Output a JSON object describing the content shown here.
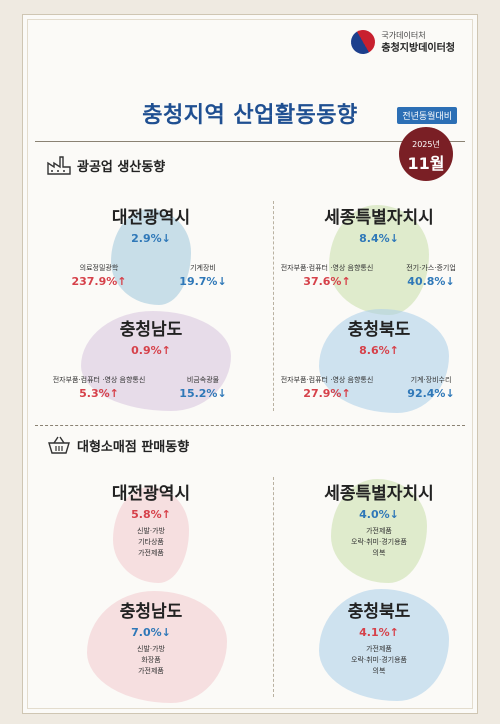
{
  "agency": {
    "sub": "국가데이터처",
    "name": "충청지방데이터청"
  },
  "title": "충청지역 산업활동동향",
  "yoy_tag": "전년동월대비",
  "date": {
    "year": "2025년",
    "month": "11월"
  },
  "section1": {
    "title": "광공업 생산동향",
    "regions": [
      {
        "name": "대전광역시",
        "total": "2.9%↓",
        "items": [
          {
            "label": "의료정밀광학",
            "value": "237.9%↑"
          },
          {
            "label": "기계장비",
            "value": "19.7%↓"
          }
        ]
      },
      {
        "name": "세종특별자치시",
        "total": "8.4%↓",
        "items": [
          {
            "label": "전자부품·컴퓨터 ·영상 음향통신",
            "value": "37.6%↑"
          },
          {
            "label": "전기·가스·증기업",
            "value": "40.8%↓"
          }
        ]
      },
      {
        "name": "충청남도",
        "total": "0.9%↑",
        "items": [
          {
            "label": "전자부품·컴퓨터 ·영상 음향통신",
            "value": "5.3%↑"
          },
          {
            "label": "비금속광물",
            "value": "15.2%↓"
          }
        ]
      },
      {
        "name": "충청북도",
        "total": "8.6%↑",
        "items": [
          {
            "label": "전자부품·컴퓨터 ·영상 음향통신",
            "value": "27.9%↑"
          },
          {
            "label": "기계·장비수리",
            "value": "92.4%↓"
          }
        ]
      }
    ]
  },
  "section2": {
    "title": "대형소매점 판매동향",
    "regions": [
      {
        "name": "대전광역시",
        "total": "5.8%↑",
        "items": [
          "신발·가방",
          "기타상품",
          "가전제품"
        ]
      },
      {
        "name": "세종특별자치시",
        "total": "4.0%↓",
        "items": [
          "가전제품",
          "오락·취미·경기용품",
          "의복"
        ]
      },
      {
        "name": "충청남도",
        "total": "7.0%↓",
        "items": [
          "신발·가방",
          "화장품",
          "가전제품"
        ]
      },
      {
        "name": "충청북도",
        "total": "4.1%↑",
        "items": [
          "가전제품",
          "오락·취미·경기용품",
          "의복"
        ]
      }
    ]
  },
  "colors": {
    "title": "#1f4f91",
    "up": "#d6414a",
    "down": "#2f78b8",
    "badge": "#7a1f25",
    "tag": "#2c6fb5"
  }
}
